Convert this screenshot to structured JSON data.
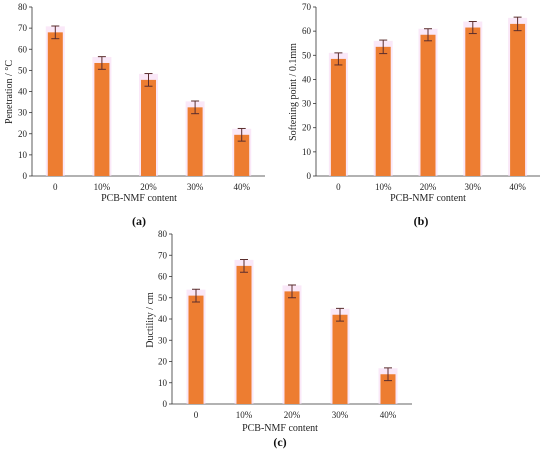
{
  "colors": {
    "bar": "#ed7d31",
    "error_bar": "#5a2d2d",
    "axis": "#333333",
    "bar_halo": "#f6d9f3"
  },
  "chart_data": [
    {
      "type": "bar",
      "panel": "(a)",
      "categories": [
        "0",
        "10%",
        "20%",
        "30%",
        "40%"
      ],
      "values": [
        68,
        53.5,
        45.5,
        32.5,
        19.5
      ],
      "errors": [
        3,
        3,
        3,
        3,
        3
      ],
      "xlabel": "PCB-NMF content",
      "ylabel": "Penetration / °C",
      "ylim": [
        0,
        80
      ],
      "yticks": [
        "0",
        "10",
        "20",
        "30",
        "40",
        "50",
        "60",
        "70",
        "80"
      ],
      "grid": false
    },
    {
      "type": "bar",
      "panel": "(b)",
      "categories": [
        "0",
        "10%",
        "20%",
        "30%",
        "40%"
      ],
      "values": [
        48.5,
        53.5,
        58.5,
        61.5,
        63
      ],
      "errors": [
        2.5,
        2.8,
        2.5,
        2.5,
        2.8
      ],
      "xlabel": "PCB-NMF content",
      "ylabel": "Softening point / 0.1mm",
      "ylim": [
        0,
        70
      ],
      "yticks": [
        "0",
        "10",
        "20",
        "30",
        "40",
        "50",
        "60",
        "70"
      ],
      "grid": false
    },
    {
      "type": "bar",
      "panel": "(c)",
      "categories": [
        "0",
        "10%",
        "20%",
        "30%",
        "40%"
      ],
      "values": [
        51,
        65,
        53,
        42,
        14
      ],
      "errors": [
        3,
        3,
        3,
        3,
        3
      ],
      "xlabel": "PCB-NMF content",
      "ylabel": "Ductility / cm",
      "ylim": [
        0,
        80
      ],
      "yticks": [
        "0",
        "10",
        "20",
        "30",
        "40",
        "50",
        "60",
        "70",
        "80"
      ],
      "grid": false
    }
  ]
}
